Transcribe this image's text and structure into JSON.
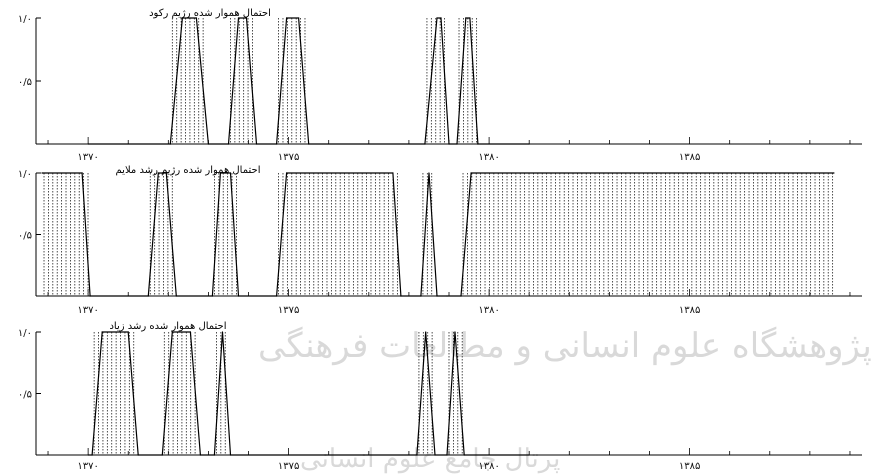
{
  "chart_data": [
    {
      "type": "line",
      "title": "احتمال هموار شده رژیم رکود",
      "x_ticks": [
        "۱۳۷۰",
        "۱۳۷۵",
        "۱۳۸۰",
        "۱۳۸۵"
      ],
      "y_ticks": [
        "۱/۰",
        "۰/۵"
      ],
      "xlim": [
        1368.7,
        1389.3
      ],
      "ylim": [
        0,
        1
      ],
      "series": [
        {
          "values": [
            {
              "x": 1370.0,
              "y": 0
            },
            {
              "x": 1372.05,
              "y": 0
            },
            {
              "x": 1372.35,
              "y": 1
            },
            {
              "x": 1372.7,
              "y": 1
            },
            {
              "x": 1373.0,
              "y": 0
            },
            {
              "x": 1373.5,
              "y": 0
            },
            {
              "x": 1373.75,
              "y": 1
            },
            {
              "x": 1373.95,
              "y": 1
            },
            {
              "x": 1374.2,
              "y": 0
            },
            {
              "x": 1374.7,
              "y": 0
            },
            {
              "x": 1374.95,
              "y": 1
            },
            {
              "x": 1375.25,
              "y": 1
            },
            {
              "x": 1375.5,
              "y": 0
            },
            {
              "x": 1378.4,
              "y": 0
            },
            {
              "x": 1378.7,
              "y": 1
            },
            {
              "x": 1378.8,
              "y": 1
            },
            {
              "x": 1379.0,
              "y": 0
            },
            {
              "x": 1379.2,
              "y": 0
            },
            {
              "x": 1379.42,
              "y": 1
            },
            {
              "x": 1379.52,
              "y": 1
            },
            {
              "x": 1379.72,
              "y": 0
            },
            {
              "x": 1381.0,
              "y": 0
            }
          ],
          "shaded": [
            [
              1372.05,
              1373.0
            ],
            [
              1373.5,
              1374.2
            ],
            [
              1374.7,
              1375.5
            ],
            [
              1378.4,
              1379.0
            ],
            [
              1379.2,
              1379.72
            ]
          ]
        }
      ]
    },
    {
      "type": "line",
      "title": "احتمال هموار شده رژیم رشد ملایم",
      "x_ticks": [
        "۱۳۷۰",
        "۱۳۷۵",
        "۱۳۸۰",
        "۱۳۸۵"
      ],
      "y_ticks": [
        "۱/۰",
        "۰/۵"
      ],
      "xlim": [
        1368.7,
        1389.3
      ],
      "ylim": [
        0,
        1
      ],
      "series": [
        {
          "values": [
            {
              "x": 1368.85,
              "y": 1
            },
            {
              "x": 1369.85,
              "y": 1
            },
            {
              "x": 1370.05,
              "y": 0
            },
            {
              "x": 1371.5,
              "y": 0
            },
            {
              "x": 1371.75,
              "y": 1
            },
            {
              "x": 1371.95,
              "y": 1
            },
            {
              "x": 1372.2,
              "y": 0
            },
            {
              "x": 1373.1,
              "y": 0
            },
            {
              "x": 1373.3,
              "y": 1
            },
            {
              "x": 1373.55,
              "y": 1
            },
            {
              "x": 1373.75,
              "y": 0
            },
            {
              "x": 1374.7,
              "y": 0
            },
            {
              "x": 1374.95,
              "y": 1
            },
            {
              "x": 1377.6,
              "y": 1
            },
            {
              "x": 1377.8,
              "y": 0
            },
            {
              "x": 1378.3,
              "y": 0
            },
            {
              "x": 1378.5,
              "y": 1
            },
            {
              "x": 1378.7,
              "y": 0
            },
            {
              "x": 1378.95,
              "y": 0
            },
            {
              "x": 1379.3,
              "y": 0
            },
            {
              "x": 1379.55,
              "y": 1
            },
            {
              "x": 1388.6,
              "y": 1
            }
          ],
          "shaded": [
            [
              1368.85,
              1370.05
            ],
            [
              1371.5,
              1372.2
            ],
            [
              1373.1,
              1373.75
            ],
            [
              1374.7,
              1377.8
            ],
            [
              1378.3,
              1378.7
            ],
            [
              1379.3,
              1388.6
            ]
          ]
        }
      ]
    },
    {
      "type": "line",
      "title": "احتمال هموار شده رشد زیاد",
      "x_ticks": [
        "۱۳۷۰",
        "۱۳۷۵",
        "۱۳۸۰",
        "۱۳۸۵"
      ],
      "y_ticks": [
        "۱/۰",
        "۰/۵"
      ],
      "xlim": [
        1368.7,
        1389.3
      ],
      "ylim": [
        0,
        1
      ],
      "series": [
        {
          "values": [
            {
              "x": 1370.0,
              "y": 0
            },
            {
              "x": 1370.1,
              "y": 0
            },
            {
              "x": 1370.35,
              "y": 1
            },
            {
              "x": 1371.0,
              "y": 1
            },
            {
              "x": 1371.25,
              "y": 0
            },
            {
              "x": 1371.85,
              "y": 0
            },
            {
              "x": 1372.1,
              "y": 1
            },
            {
              "x": 1372.55,
              "y": 1
            },
            {
              "x": 1372.8,
              "y": 0
            },
            {
              "x": 1373.15,
              "y": 0
            },
            {
              "x": 1373.35,
              "y": 1
            },
            {
              "x": 1373.55,
              "y": 0
            },
            {
              "x": 1378.2,
              "y": 0
            },
            {
              "x": 1378.42,
              "y": 1
            },
            {
              "x": 1378.65,
              "y": 0
            },
            {
              "x": 1378.95,
              "y": 0
            },
            {
              "x": 1379.15,
              "y": 1
            },
            {
              "x": 1379.38,
              "y": 0
            },
            {
              "x": 1381.0,
              "y": 0
            }
          ],
          "shaded": [
            [
              1370.1,
              1371.25
            ],
            [
              1371.85,
              1372.8
            ],
            [
              1373.15,
              1373.55
            ],
            [
              1378.2,
              1378.65
            ],
            [
              1378.95,
              1379.38
            ]
          ]
        }
      ]
    }
  ],
  "watermark": {
    "line1": "پژوهشگاه علوم انسانی و مطالعات فرهنگی",
    "line2": "پرتال جامع علوم انسانی"
  }
}
